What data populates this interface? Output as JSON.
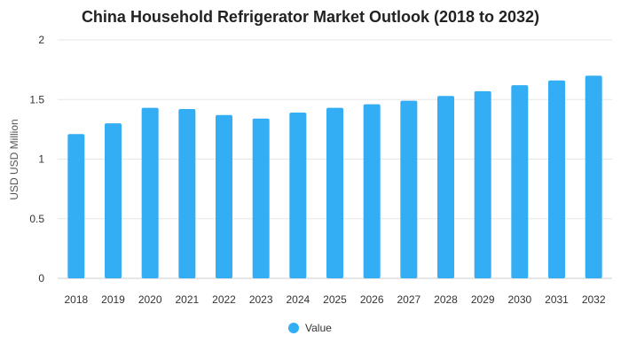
{
  "chart_data": {
    "type": "bar",
    "title": "China Household Refrigerator Market Outlook (2018 to 2032)",
    "xlabel": "",
    "ylabel": "USD USD Million",
    "categories": [
      "2018",
      "2019",
      "2020",
      "2021",
      "2022",
      "2023",
      "2024",
      "2025",
      "2026",
      "2027",
      "2028",
      "2029",
      "2030",
      "2031",
      "2032"
    ],
    "series": [
      {
        "name": "Value",
        "color": "#33adf4",
        "values": [
          1.21,
          1.3,
          1.43,
          1.42,
          1.37,
          1.34,
          1.39,
          1.43,
          1.46,
          1.49,
          1.53,
          1.57,
          1.62,
          1.66,
          1.7
        ]
      }
    ],
    "ylim": [
      0,
      2
    ],
    "yticks": [
      "0",
      "0.5",
      "1",
      "1.5",
      "2"
    ],
    "grid": true,
    "legend_position": "bottom-center"
  }
}
